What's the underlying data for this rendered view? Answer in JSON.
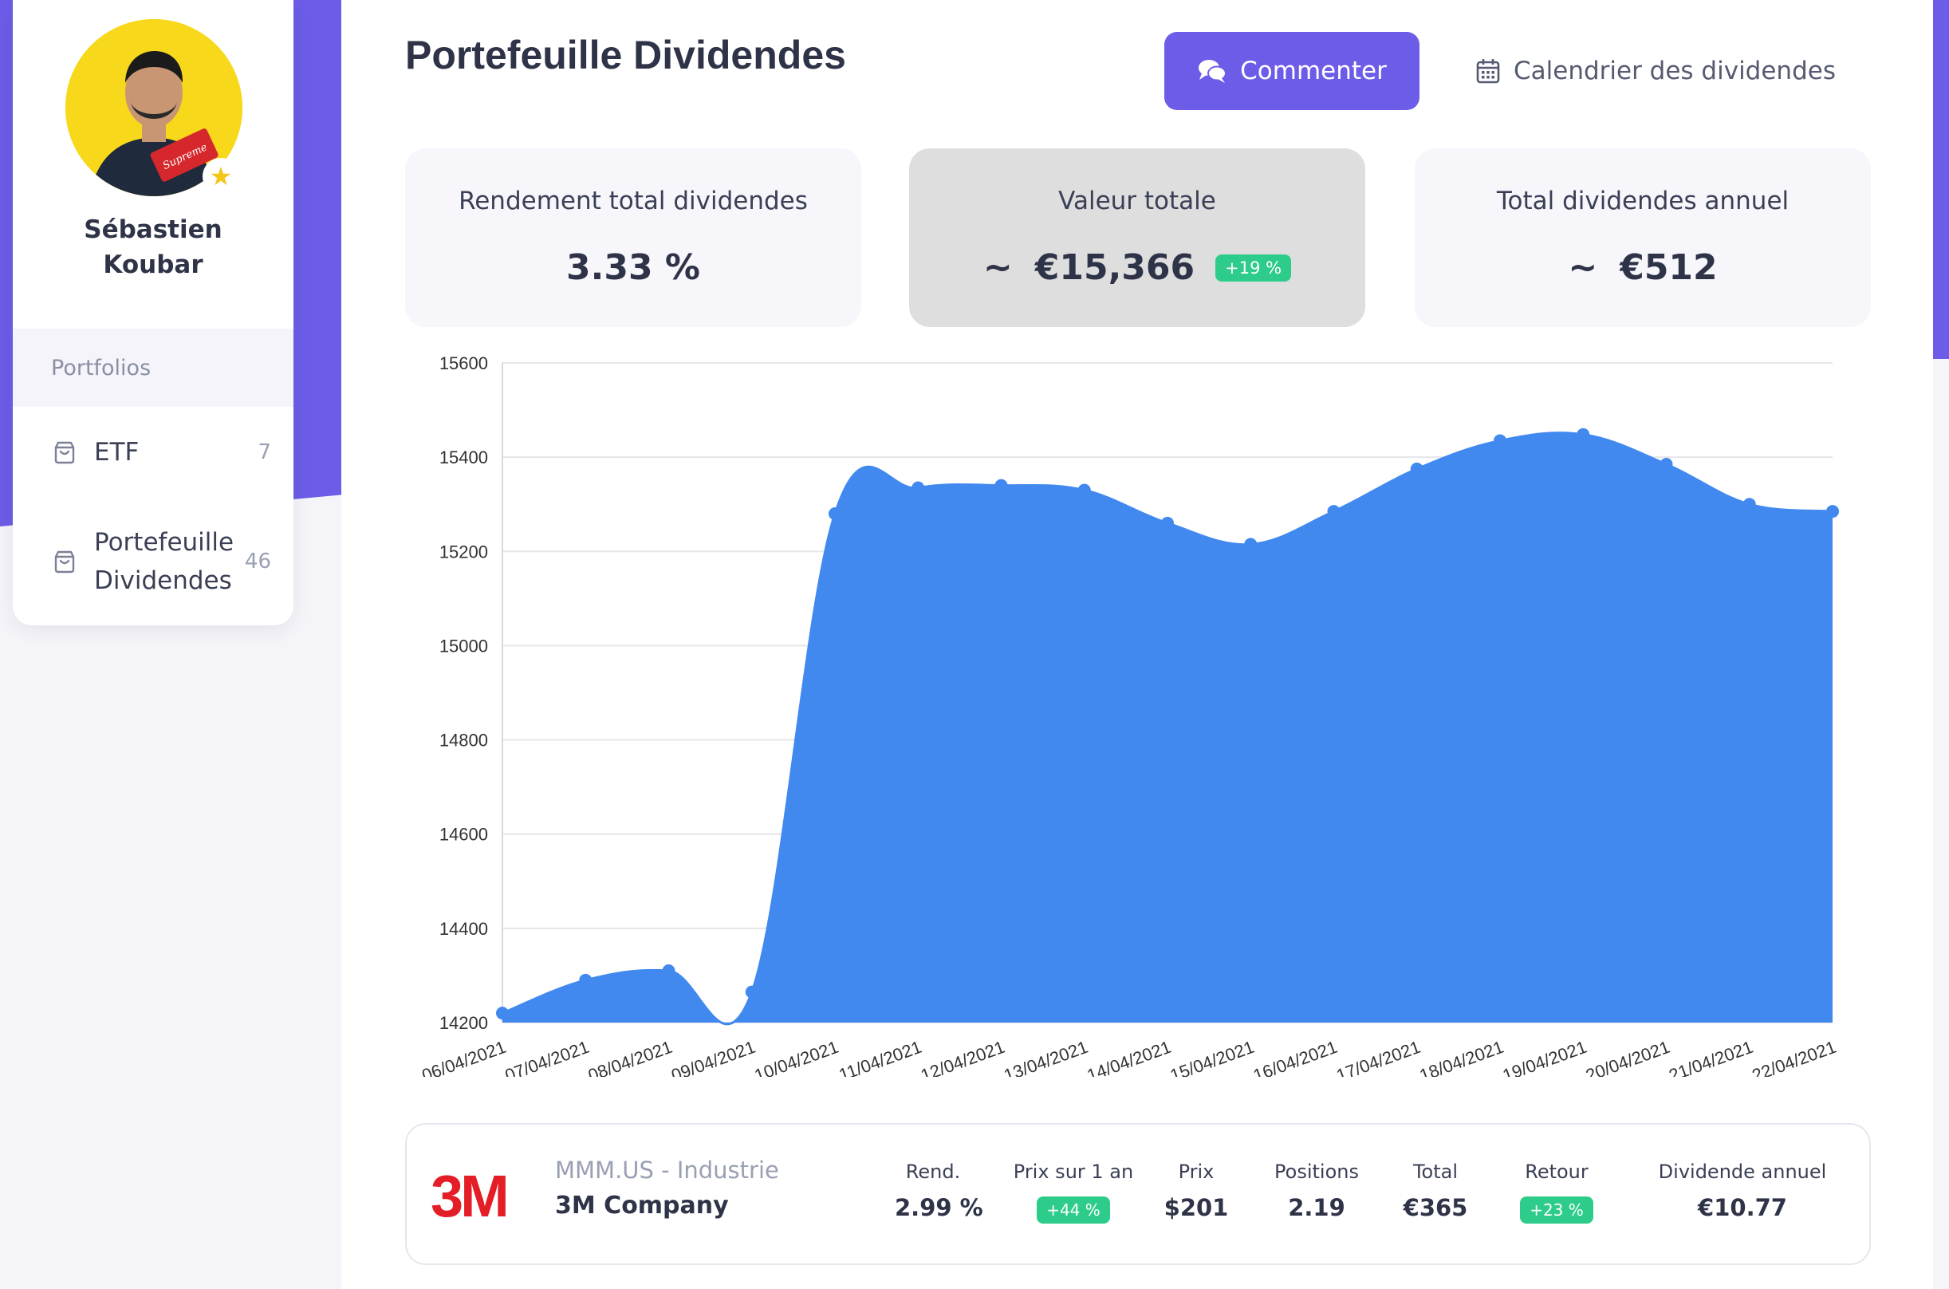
{
  "user": {
    "name_line1": "Sébastien",
    "name_line2": "Koubar"
  },
  "sidebar": {
    "header": "Portfolios",
    "items": [
      {
        "label": "ETF",
        "count": "7"
      },
      {
        "label_line1": "Portefeuille",
        "label_line2": "Dividendes",
        "count": "46"
      }
    ]
  },
  "header": {
    "title": "Portefeuille Dividendes",
    "comment_button": "Commenter",
    "calendar_button": "Calendrier des dividendes"
  },
  "stats": [
    {
      "label": "Rendement total dividendes",
      "value": "3.33 %"
    },
    {
      "label": "Valeur totale",
      "prefix": "~",
      "value": "€15,366",
      "badge": "+19 %"
    },
    {
      "label": "Total dividendes annuel",
      "prefix": "~",
      "value": "€512"
    }
  ],
  "chart_data": {
    "type": "area",
    "x": [
      "06/04/2021",
      "07/04/2021",
      "08/04/2021",
      "09/04/2021",
      "10/04/2021",
      "11/04/2021",
      "12/04/2021",
      "13/04/2021",
      "14/04/2021",
      "15/04/2021",
      "16/04/2021",
      "17/04/2021",
      "18/04/2021",
      "19/04/2021",
      "20/04/2021",
      "21/04/2021",
      "22/04/2021"
    ],
    "series": [
      {
        "values": [
          14220,
          14290,
          14310,
          14265,
          15280,
          15335,
          15340,
          15330,
          15260,
          15215,
          15285,
          15375,
          15435,
          15448,
          15385,
          15300,
          15285
        ]
      }
    ],
    "ylim": [
      14200,
      15600
    ],
    "yticks": [
      14200,
      14400,
      14600,
      14800,
      15000,
      15200,
      15400,
      15600
    ],
    "grid": true,
    "color": "#4189ef"
  },
  "stock": {
    "logo": "3M",
    "ticker": "MMM.US - Industrie",
    "name": "3M Company",
    "metrics": [
      {
        "label": "Rend.",
        "value": "2.99 %"
      },
      {
        "label": "Prix sur 1 an",
        "badge": "+44 %"
      },
      {
        "label": "Prix",
        "value": "$201"
      },
      {
        "label": "Positions",
        "value": "2.19"
      },
      {
        "label": "Total",
        "value": "€365"
      },
      {
        "label": "Retour",
        "badge": "+23 %"
      },
      {
        "label": "Dividende annuel",
        "value": "€10.77"
      }
    ]
  },
  "colors": {
    "accent": "#6c5ce7",
    "positive": "#2ecc8a",
    "chart": "#4189ef",
    "brand_3m": "#e41e26"
  }
}
